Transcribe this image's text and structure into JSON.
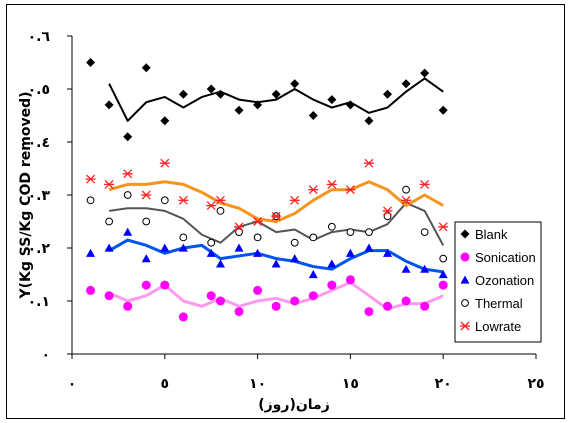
{
  "chart_data": {
    "type": "scatter",
    "xlabel": "زمان(روز)",
    "ylabel": "Y(Kg SS/Kg COD removed)",
    "xlim": [
      0,
      25
    ],
    "ylim": [
      0,
      0.6
    ],
    "x_tick_labels": [
      "٠",
      "٥",
      "١٠",
      "١٥",
      "٢٠",
      "٢٥"
    ],
    "x_tick_values": [
      0,
      5,
      10,
      15,
      20,
      25
    ],
    "y_tick_labels": [
      "٠",
      "٠.١",
      "٠.٢",
      "٠.٣",
      "٠.٤",
      "٠.٥",
      "٠.٦"
    ],
    "y_tick_values": [
      0,
      0.1,
      0.2,
      0.3,
      0.4,
      0.5,
      0.6
    ],
    "grid": false,
    "legend_position": "right",
    "series": [
      {
        "name": "Blank",
        "marker": "diamond",
        "color": "#000000",
        "points": [
          [
            1,
            0.55
          ],
          [
            2,
            0.47
          ],
          [
            3,
            0.41
          ],
          [
            4,
            0.54
          ],
          [
            5,
            0.44
          ],
          [
            6,
            0.49
          ],
          [
            7.5,
            0.5
          ],
          [
            8,
            0.49
          ],
          [
            9,
            0.46
          ],
          [
            10,
            0.47
          ],
          [
            11,
            0.49
          ],
          [
            12,
            0.51
          ],
          [
            13,
            0.45
          ],
          [
            14,
            0.48
          ],
          [
            15,
            0.47
          ],
          [
            16,
            0.44
          ],
          [
            17,
            0.49
          ],
          [
            18,
            0.51
          ],
          [
            19,
            0.53
          ],
          [
            20,
            0.46
          ]
        ],
        "trend": [
          [
            2,
            0.51
          ],
          [
            3,
            0.44
          ],
          [
            4,
            0.475
          ],
          [
            5,
            0.485
          ],
          [
            6,
            0.465
          ],
          [
            7,
            0.485
          ],
          [
            8,
            0.495
          ],
          [
            9,
            0.48
          ],
          [
            10,
            0.475
          ],
          [
            11,
            0.48
          ],
          [
            12,
            0.5
          ],
          [
            13,
            0.48
          ],
          [
            14,
            0.465
          ],
          [
            15,
            0.475
          ],
          [
            16,
            0.455
          ],
          [
            17,
            0.465
          ],
          [
            18,
            0.495
          ],
          [
            19,
            0.52
          ],
          [
            20,
            0.495
          ]
        ]
      },
      {
        "name": "Sonication",
        "marker": "circle-filled",
        "color": "#ff00ff",
        "points": [
          [
            1,
            0.12
          ],
          [
            2,
            0.11
          ],
          [
            3,
            0.09
          ],
          [
            4,
            0.13
          ],
          [
            5,
            0.13
          ],
          [
            6,
            0.07
          ],
          [
            7.5,
            0.11
          ],
          [
            8,
            0.1
          ],
          [
            9,
            0.08
          ],
          [
            10,
            0.12
          ],
          [
            11,
            0.09
          ],
          [
            12,
            0.1
          ],
          [
            13,
            0.11
          ],
          [
            14,
            0.13
          ],
          [
            15,
            0.14
          ],
          [
            16,
            0.08
          ],
          [
            17,
            0.09
          ],
          [
            18,
            0.1
          ],
          [
            19,
            0.09
          ],
          [
            20,
            0.13
          ]
        ],
        "trend": [
          [
            2,
            0.115
          ],
          [
            3,
            0.1
          ],
          [
            4,
            0.11
          ],
          [
            5,
            0.13
          ],
          [
            6,
            0.1
          ],
          [
            7,
            0.09
          ],
          [
            8,
            0.105
          ],
          [
            9,
            0.09
          ],
          [
            10,
            0.1
          ],
          [
            11,
            0.105
          ],
          [
            12,
            0.095
          ],
          [
            13,
            0.105
          ],
          [
            14,
            0.12
          ],
          [
            15,
            0.135
          ],
          [
            16,
            0.11
          ],
          [
            17,
            0.085
          ],
          [
            18,
            0.095
          ],
          [
            19,
            0.095
          ],
          [
            20,
            0.11
          ]
        ]
      },
      {
        "name": "Ozonation",
        "marker": "triangle",
        "color": "#0000ff",
        "points": [
          [
            1,
            0.19
          ],
          [
            2,
            0.2
          ],
          [
            3,
            0.23
          ],
          [
            4,
            0.18
          ],
          [
            5,
            0.2
          ],
          [
            6,
            0.2
          ],
          [
            7.5,
            0.19
          ],
          [
            8,
            0.17
          ],
          [
            9,
            0.2
          ],
          [
            10,
            0.19
          ],
          [
            11,
            0.17
          ],
          [
            12,
            0.18
          ],
          [
            13,
            0.15
          ],
          [
            14,
            0.17
          ],
          [
            15,
            0.19
          ],
          [
            16,
            0.2
          ],
          [
            17,
            0.19
          ],
          [
            18,
            0.16
          ],
          [
            19,
            0.16
          ],
          [
            20,
            0.15
          ]
        ],
        "trend": [
          [
            2,
            0.195
          ],
          [
            3,
            0.215
          ],
          [
            4,
            0.205
          ],
          [
            5,
            0.19
          ],
          [
            6,
            0.2
          ],
          [
            7,
            0.205
          ],
          [
            8,
            0.18
          ],
          [
            9,
            0.185
          ],
          [
            10,
            0.19
          ],
          [
            11,
            0.18
          ],
          [
            12,
            0.175
          ],
          [
            13,
            0.165
          ],
          [
            14,
            0.16
          ],
          [
            15,
            0.18
          ],
          [
            16,
            0.195
          ],
          [
            17,
            0.195
          ],
          [
            18,
            0.175
          ],
          [
            19,
            0.16
          ],
          [
            20,
            0.155
          ]
        ]
      },
      {
        "name": "Thermal",
        "marker": "circle-open",
        "color": "#000000",
        "points": [
          [
            1,
            0.29
          ],
          [
            2,
            0.25
          ],
          [
            3,
            0.3
          ],
          [
            4,
            0.25
          ],
          [
            5,
            0.29
          ],
          [
            6,
            0.22
          ],
          [
            7.5,
            0.21
          ],
          [
            8,
            0.27
          ],
          [
            9,
            0.23
          ],
          [
            10,
            0.22
          ],
          [
            11,
            0.26
          ],
          [
            12,
            0.21
          ],
          [
            13,
            0.22
          ],
          [
            14,
            0.24
          ],
          [
            15,
            0.23
          ],
          [
            16,
            0.23
          ],
          [
            17,
            0.26
          ],
          [
            18,
            0.31
          ],
          [
            19,
            0.23
          ],
          [
            20,
            0.18
          ]
        ],
        "trend": [
          [
            2,
            0.27
          ],
          [
            3,
            0.275
          ],
          [
            4,
            0.275
          ],
          [
            5,
            0.27
          ],
          [
            6,
            0.255
          ],
          [
            7,
            0.225
          ],
          [
            8,
            0.21
          ],
          [
            9,
            0.24
          ],
          [
            10,
            0.25
          ],
          [
            11,
            0.23
          ],
          [
            12,
            0.235
          ],
          [
            13,
            0.215
          ],
          [
            14,
            0.23
          ],
          [
            15,
            0.235
          ],
          [
            16,
            0.23
          ],
          [
            17,
            0.245
          ],
          [
            18,
            0.285
          ],
          [
            19,
            0.27
          ],
          [
            20,
            0.205
          ]
        ]
      },
      {
        "name": "Lowrate",
        "marker": "asterisk",
        "color": "#ff2020",
        "points": [
          [
            1,
            0.33
          ],
          [
            2,
            0.32
          ],
          [
            3,
            0.34
          ],
          [
            4,
            0.3
          ],
          [
            5,
            0.36
          ],
          [
            6,
            0.29
          ],
          [
            7.5,
            0.28
          ],
          [
            8,
            0.29
          ],
          [
            9,
            0.24
          ],
          [
            10,
            0.25
          ],
          [
            11,
            0.26
          ],
          [
            12,
            0.29
          ],
          [
            13,
            0.31
          ],
          [
            14,
            0.32
          ],
          [
            15,
            0.31
          ],
          [
            16,
            0.36
          ],
          [
            17,
            0.27
          ],
          [
            18,
            0.29
          ],
          [
            19,
            0.32
          ],
          [
            20,
            0.24
          ]
        ],
        "trend": [
          [
            2,
            0.31
          ],
          [
            3,
            0.32
          ],
          [
            4,
            0.32
          ],
          [
            5,
            0.325
          ],
          [
            6,
            0.32
          ],
          [
            7,
            0.305
          ],
          [
            8,
            0.285
          ],
          [
            9,
            0.275
          ],
          [
            10,
            0.255
          ],
          [
            11,
            0.25
          ],
          [
            12,
            0.265
          ],
          [
            13,
            0.29
          ],
          [
            14,
            0.31
          ],
          [
            15,
            0.31
          ],
          [
            16,
            0.325
          ],
          [
            17,
            0.31
          ],
          [
            18,
            0.28
          ],
          [
            19,
            0.3
          ],
          [
            20,
            0.28
          ]
        ]
      }
    ]
  }
}
